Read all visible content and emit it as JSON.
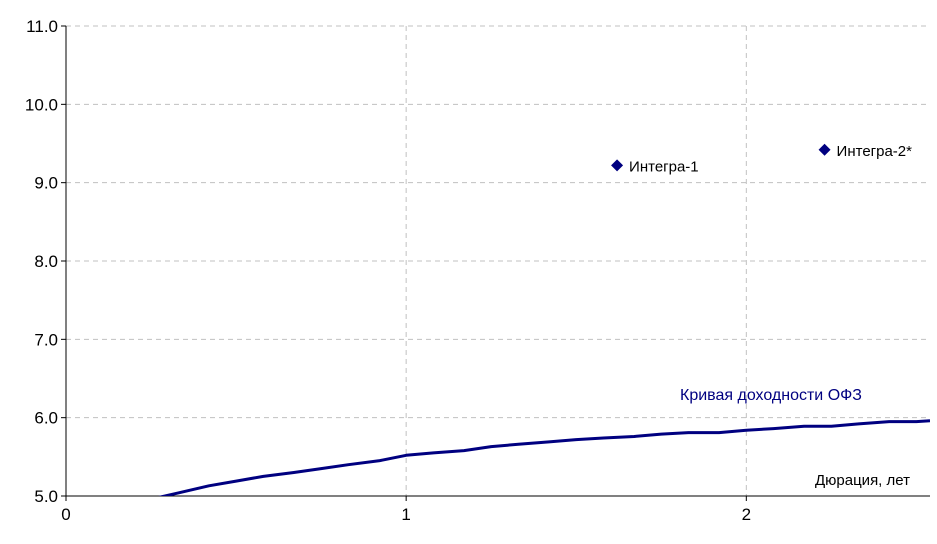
{
  "chart_data": {
    "type": "line",
    "title": "",
    "xlabel": "Дюрация, лет",
    "ylabel": "",
    "xlim": [
      0,
      2.54
    ],
    "ylim": [
      5.0,
      11.0
    ],
    "x_ticks": [
      0,
      1,
      2
    ],
    "x_tick_labels": [
      "0",
      "1",
      "2"
    ],
    "y_ticks": [
      5.0,
      6.0,
      7.0,
      8.0,
      9.0,
      10.0,
      11.0
    ],
    "y_tick_labels": [
      "5.0",
      "6.0",
      "7.0",
      "8.0",
      "9.0",
      "10.0",
      "11.0"
    ],
    "grid": true,
    "colors": {
      "curve": "#000080",
      "points": "#000080",
      "grid": "#c0c0c0",
      "axis": "#000000"
    },
    "curve": {
      "name": "Кривая доходности ОФЗ",
      "points": [
        [
          0.26,
          4.97
        ],
        [
          0.33,
          5.04
        ],
        [
          0.42,
          5.13
        ],
        [
          0.5,
          5.19
        ],
        [
          0.58,
          5.25
        ],
        [
          0.67,
          5.3
        ],
        [
          0.75,
          5.35
        ],
        [
          0.83,
          5.4
        ],
        [
          0.92,
          5.45
        ],
        [
          1.0,
          5.52
        ],
        [
          1.08,
          5.55
        ],
        [
          1.17,
          5.58
        ],
        [
          1.25,
          5.63
        ],
        [
          1.33,
          5.66
        ],
        [
          1.42,
          5.69
        ],
        [
          1.5,
          5.72
        ],
        [
          1.58,
          5.74
        ],
        [
          1.67,
          5.76
        ],
        [
          1.75,
          5.79
        ],
        [
          1.83,
          5.81
        ],
        [
          1.92,
          5.81
        ],
        [
          2.0,
          5.84
        ],
        [
          2.08,
          5.86
        ],
        [
          2.17,
          5.89
        ],
        [
          2.25,
          5.89
        ],
        [
          2.33,
          5.92
        ],
        [
          2.42,
          5.95
        ],
        [
          2.5,
          5.95
        ],
        [
          2.54,
          5.96
        ]
      ]
    },
    "points": [
      {
        "name": "Интегра-1",
        "x": 1.62,
        "y": 9.22
      },
      {
        "name": "Интегра-2*",
        "x": 2.23,
        "y": 9.42
      }
    ]
  }
}
